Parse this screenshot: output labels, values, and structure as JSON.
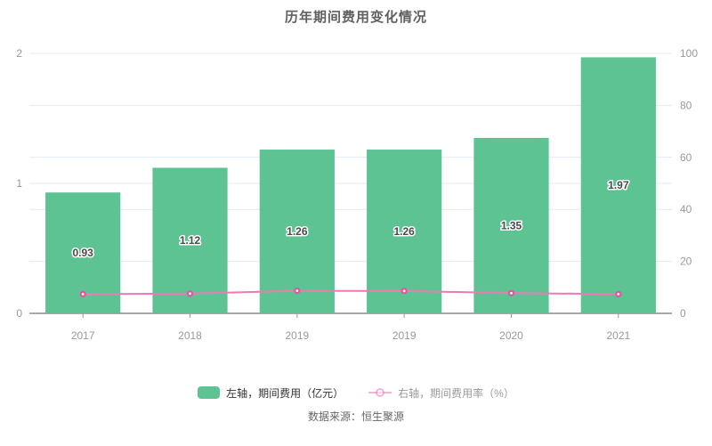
{
  "page": {
    "background": "#ffffff"
  },
  "chart_data": {
    "type": "bar",
    "title": "历年期间费用变化情况",
    "categories": [
      "2017",
      "2018",
      "2019",
      "2019",
      "2020",
      "2021"
    ],
    "series": [
      {
        "name": "左轴，期间费用（亿元）",
        "kind": "bar",
        "axis": "left",
        "values": [
          0.93,
          1.12,
          1.26,
          1.26,
          1.35,
          1.97
        ],
        "data_labels": [
          "0.93",
          "1.12",
          "1.26",
          "1.26",
          "1.35",
          "1.97"
        ],
        "color": "#5ec392",
        "label_color": "#4a4a4a"
      },
      {
        "name": "右轴，期间费用率（%）",
        "kind": "line",
        "axis": "right",
        "values": [
          7.4,
          7.6,
          8.7,
          8.6,
          7.8,
          7.4
        ],
        "color": "#ee7ab3",
        "marker_color": "#e2559f"
      }
    ],
    "left_axis": {
      "min": 0,
      "max": 2,
      "ticks": [
        0,
        1,
        2
      ]
    },
    "right_axis": {
      "min": 0,
      "max": 100,
      "ticks": [
        0,
        20,
        40,
        60,
        80,
        100
      ]
    },
    "grid": true,
    "legend_position": "bottom",
    "colors": {
      "grid_line": "#e4e9f2",
      "axis_line": "#555555",
      "axis_tick": "#999999",
      "axis_text": "#999999"
    },
    "source_note": "数据来源：恒生聚源"
  }
}
